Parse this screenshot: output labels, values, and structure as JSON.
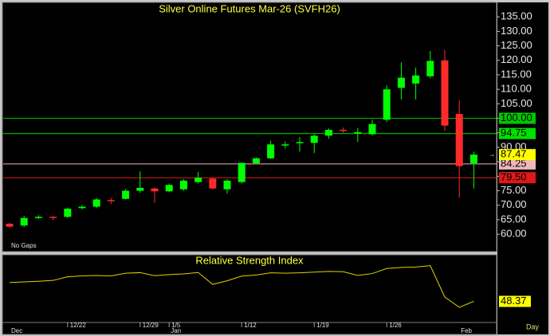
{
  "chart_data": [
    {
      "type": "candlestick",
      "title": "Silver Online Futures Mar-26 (SVFH26)",
      "note": "No Gaps",
      "period": "Day",
      "categories": [
        null,
        null,
        null,
        null,
        "12/22",
        null,
        null,
        null,
        null,
        "12/29",
        null,
        "1/5",
        null,
        null,
        null,
        null,
        "1/12",
        null,
        null,
        null,
        null,
        "1/19",
        null,
        null,
        null,
        null,
        "1/26",
        null,
        null,
        null,
        null,
        null,
        null
      ],
      "months": [
        "Dec",
        null,
        null,
        null,
        null,
        null,
        null,
        null,
        null,
        null,
        null,
        "Jan",
        null,
        null,
        null,
        null,
        null,
        null,
        null,
        null,
        null,
        null,
        null,
        null,
        null,
        null,
        null,
        null,
        null,
        null,
        null,
        "Feb",
        null
      ],
      "open": [
        63.6,
        63.0,
        65.7,
        66.0,
        66.0,
        69.0,
        69.5,
        71.8,
        72.2,
        75.0,
        75.8,
        74.8,
        75.5,
        78.0,
        79.2,
        75.5,
        78.0,
        84.5,
        86.2,
        90.8,
        91.5,
        91.5,
        94.0,
        96.0,
        94.8,
        94.5,
        99.5,
        110.5,
        112.0,
        114.5,
        120.0,
        101.5,
        84.5
      ],
      "high": [
        64.0,
        66.3,
        66.6,
        66.3,
        69.2,
        70.0,
        72.5,
        72.5,
        75.6,
        81.7,
        76.0,
        77.5,
        79.0,
        81.5,
        79.5,
        79.0,
        84.8,
        86.5,
        92.3,
        92.0,
        93.5,
        94.5,
        96.5,
        96.8,
        96.7,
        99.5,
        111.3,
        119.3,
        117.5,
        123.2,
        123.6,
        106.2,
        88.5
      ],
      "low": [
        62.2,
        62.5,
        65.2,
        64.8,
        65.6,
        68.6,
        69.0,
        70.5,
        72.0,
        74.3,
        70.8,
        74.5,
        75.0,
        77.5,
        75.5,
        74.0,
        77.5,
        84.2,
        86.0,
        89.5,
        88.5,
        88.0,
        93.0,
        95.0,
        91.8,
        94.0,
        98.7,
        106.5,
        106.5,
        113.8,
        95.6,
        72.6,
        75.8
      ],
      "close": [
        62.6,
        65.6,
        66.0,
        65.6,
        68.8,
        69.5,
        72.0,
        71.4,
        75.0,
        76.0,
        74.8,
        77.0,
        78.5,
        79.5,
        75.8,
        78.5,
        84.6,
        86.2,
        91.0,
        91.0,
        91.8,
        94.0,
        96.0,
        95.8,
        95.2,
        98.0,
        110.0,
        114.0,
        114.8,
        119.8,
        97.5,
        83.5,
        87.47
      ],
      "up_color": "#00ff00",
      "down_color": "#ff2a2a",
      "ylim": [
        54,
        140
      ],
      "yticks": [
        {
          "value": 135,
          "label": "135.00"
        },
        {
          "value": 130,
          "label": "130.00"
        },
        {
          "value": 125,
          "label": "125.00"
        },
        {
          "value": 120,
          "label": "120.00"
        },
        {
          "value": 115,
          "label": "115.00"
        },
        {
          "value": 110,
          "label": "110.00"
        },
        {
          "value": 105,
          "label": "105.00"
        },
        {
          "value": 100,
          "label": "100.00"
        },
        {
          "value": 95,
          "label": "95.00"
        },
        {
          "value": 90,
          "label": "90.00"
        },
        {
          "value": 85,
          "label": "85.00"
        },
        {
          "value": 80,
          "label": "80.00"
        },
        {
          "value": 75,
          "label": "75.00"
        },
        {
          "value": 70,
          "label": "70.00"
        },
        {
          "value": 65,
          "label": "65.00"
        },
        {
          "value": 60,
          "label": "60.00"
        }
      ],
      "levels": [
        {
          "value": 100,
          "label": "100.00",
          "color": "#00c800"
        },
        {
          "value": 94.75,
          "color": "#00e000"
        },
        {
          "value": 84.25,
          "color": "#f0b8b8"
        },
        {
          "value": 79.5,
          "label": "79.50",
          "color": "#e01818"
        }
      ],
      "last_color": "#ffff00"
    },
    {
      "type": "line",
      "title": "Relative Strength Index",
      "color": "#e0d400",
      "ylim": [
        38,
        72
      ],
      "values": [
        58.8,
        59.2,
        59.5,
        60.0,
        62.0,
        62.5,
        62.7,
        62.5,
        64.0,
        64.3,
        62.6,
        63.2,
        63.6,
        64.4,
        57.8,
        59.8,
        62.4,
        63.0,
        64.2,
        64.0,
        64.2,
        64.6,
        65.0,
        64.8,
        62.8,
        63.8,
        66.6,
        67.2,
        67.4,
        68.2,
        50.8,
        45.1,
        48.37
      ],
      "last_color": "#ffff00"
    }
  ]
}
